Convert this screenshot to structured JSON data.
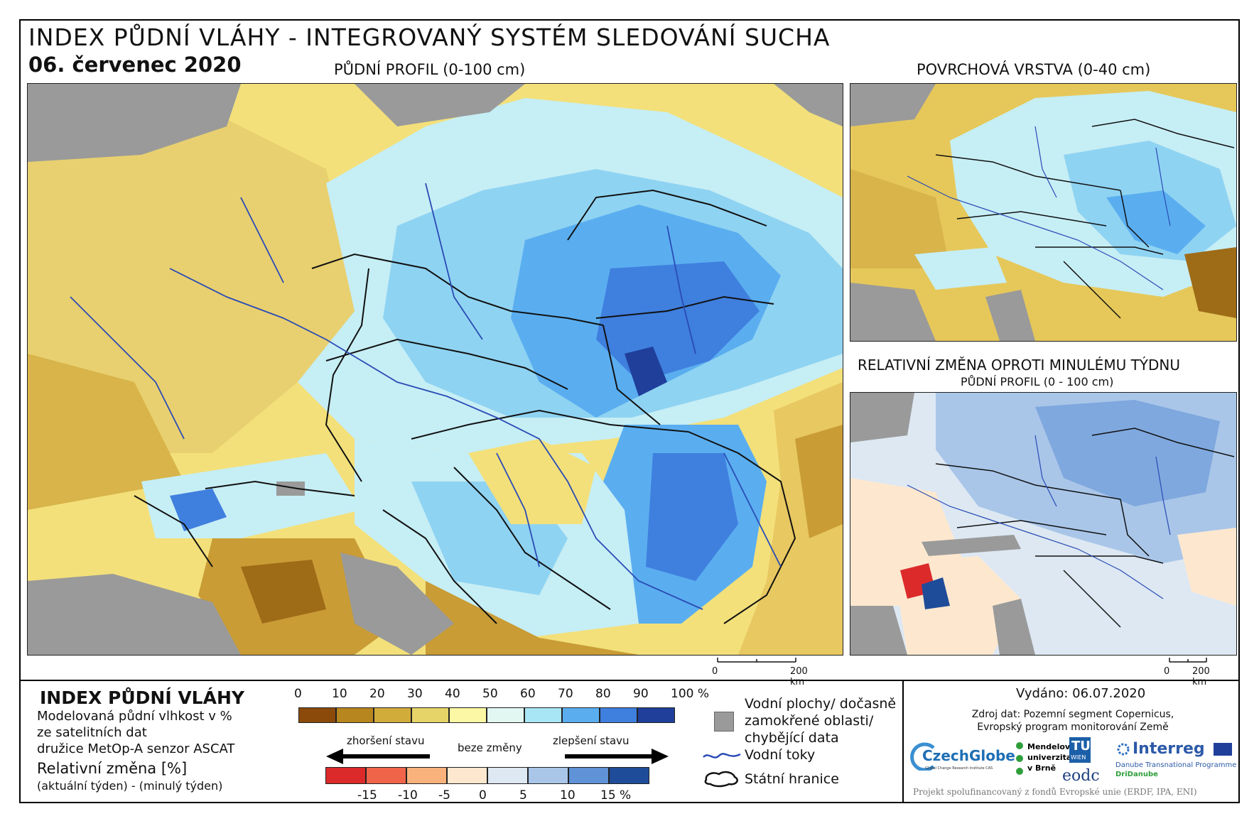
{
  "header": {
    "title": "INDEX PŮDNÍ VLÁHY - INTEGROVANÝ SYSTÉM SLEDOVÁNÍ SUCHA",
    "date": "06. červenec 2020"
  },
  "maps": {
    "main_label": "PŮDNÍ PROFIL (0-100 cm)",
    "surface_label": "POVRCHOVÁ VRSTVA (0-40 cm)",
    "change_label": "RELATIVNÍ ZMĚNA OPROTI MINULÉMU TÝDNU",
    "change_sublabel": "PŮDNÍ PROFIL (0 - 100 cm)",
    "scale_zero": "0",
    "scale_km": "200 km"
  },
  "legend": {
    "title": "INDEX PŮDNÍ VLÁHY",
    "desc1": "Modelovaná půdní vlhkost v %",
    "desc2": "ze satelitních dat",
    "desc3": "družice MetOp-A senzor ASCAT",
    "rel_title": "Relativní změna [%]",
    "rel_sub": "(aktuální týden) - (minulý týden)",
    "index_ticks": [
      "0",
      "10",
      "20",
      "30",
      "40",
      "50",
      "60",
      "70",
      "80",
      "90",
      "100 %"
    ],
    "index_colors": [
      "#8b4a0a",
      "#b8861f",
      "#d1ac3b",
      "#e6d468",
      "#fbf7a4",
      "#e2f7f2",
      "#a9e6f5",
      "#5aaef0",
      "#3f7fde",
      "#1f3f9a"
    ],
    "change_ticks": [
      "-15",
      "-10",
      "-5",
      "0",
      "5",
      "10",
      "15 %"
    ],
    "change_colors": [
      "#dc2a2a",
      "#f0644a",
      "#fab27c",
      "#fde8cf",
      "#dde8f3",
      "#a9c6e9",
      "#5f92d6",
      "#1f4c99"
    ],
    "worse": "zhoršení stavu",
    "nochange": "beze změny",
    "better": "zlepšení stavu",
    "water1": "Vodní plochy/ dočasně",
    "water2": "zamokřené oblasti/",
    "water3": "chybějící data",
    "rivers": "Vodní toky",
    "borders": "Státní hranice"
  },
  "footer": {
    "issued": "Vydáno: 06.07.2020",
    "source1": "Zdroj dat: Pozemní segment Copernicus,",
    "source2": "Evropský program monitorování Země",
    "project": "Projekt spolufinancovaný z fondů Evropské unie (ERDF, IPA, ENI)",
    "logos": {
      "czechglobe": "CzechGlobe",
      "czechglobe_sub": "Global Change Research Institute CAS",
      "mendelu1": "Mendelova",
      "mendelu2": "univerzita",
      "mendelu3": "v Brně",
      "tu": "TU",
      "tu_sub": "WIEN",
      "eodc": "eodc",
      "interreg": "Interreg",
      "interreg_sub": "Danube Transnational Programme",
      "dridanube": "DriDanube"
    }
  }
}
